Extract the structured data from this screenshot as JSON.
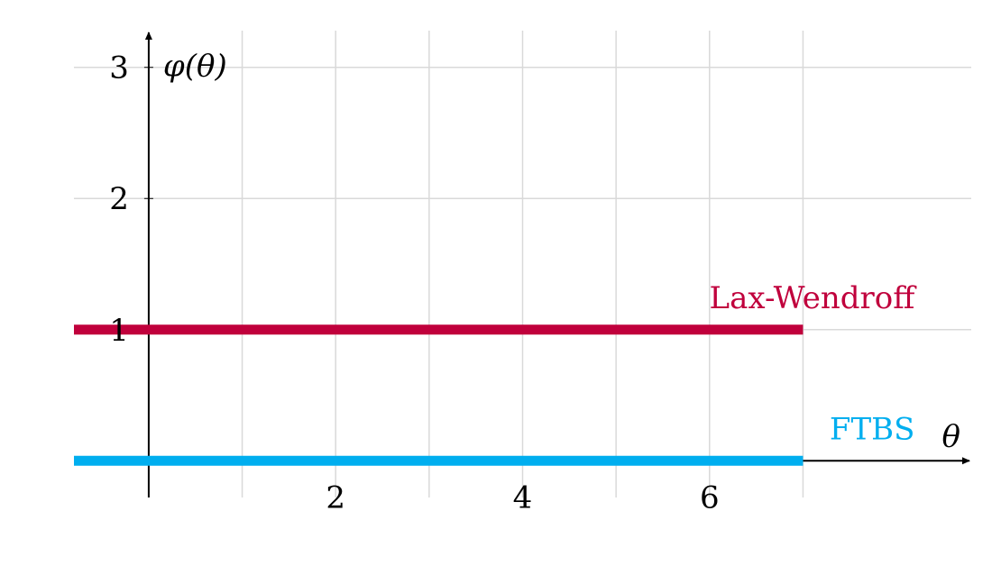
{
  "chart_data": {
    "type": "line",
    "xlabel": "θ",
    "ylabel": "φ(θ)",
    "xlim": [
      -0.8,
      8.8
    ],
    "ylim": [
      -0.28,
      3.28
    ],
    "x_ticks": [
      2,
      4,
      6
    ],
    "x_tick_labels": [
      "2",
      "4",
      "6"
    ],
    "y_ticks": [
      1,
      2,
      3
    ],
    "y_tick_labels": [
      "1",
      "2",
      "3"
    ],
    "grid": true,
    "x_grid": [
      1,
      2,
      3,
      4,
      5,
      6,
      7
    ],
    "y_grid": [
      1,
      2,
      3
    ],
    "series": [
      {
        "name": "Lax-Wendroff",
        "color": "#C0003C",
        "x": [
          -0.8,
          7
        ],
        "y": [
          1,
          1
        ]
      },
      {
        "name": "FTBS",
        "color": "#00AEEF",
        "x": [
          -0.8,
          7
        ],
        "y": [
          0,
          0
        ]
      }
    ]
  }
}
